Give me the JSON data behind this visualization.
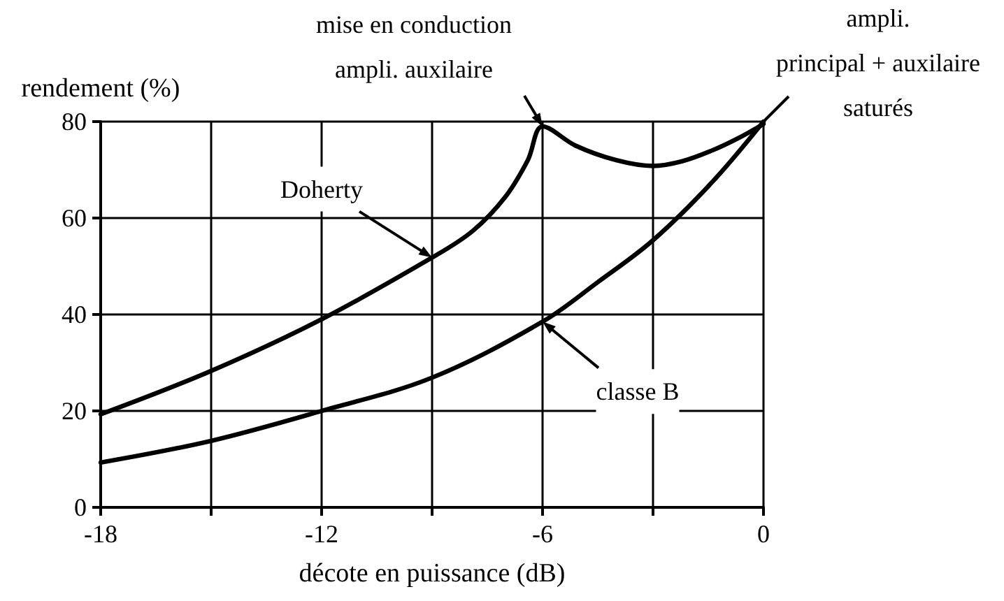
{
  "chart_data": {
    "type": "line",
    "xlabel": "décote en puissance (dB)",
    "ylabel": "rendement (%)",
    "xlim": [
      -18,
      0
    ],
    "xticks": [
      -18,
      {
        "value": -15,
        "label": null
      },
      -12,
      {
        "value": -9,
        "label": null
      },
      -6,
      {
        "value": -3,
        "label": null
      },
      0
    ],
    "ylim": [
      0,
      80
    ],
    "yticks": [
      0,
      20,
      40,
      60,
      80
    ],
    "grid": true,
    "marker": "none",
    "line_style": "solid",
    "series": [
      {
        "color": "#000000",
        "x": [
          -18,
          -15,
          -12,
          -9,
          -7.9,
          -7,
          -6.4,
          -6,
          -5.1,
          -4,
          -3,
          -2.2,
          -1.4,
          -0.7,
          0
        ],
        "values": [
          19.3,
          28.3,
          39,
          51.8,
          57.3,
          64.5,
          72,
          79,
          75,
          72,
          70.8,
          71.8,
          74,
          76.5,
          79.5
        ]
      },
      {
        "color": "#000000",
        "x": [
          -18,
          -15,
          -12,
          -9,
          -6,
          -4.5,
          -3,
          -1.4,
          0
        ],
        "values": [
          9.3,
          13.8,
          20,
          26.9,
          38.5,
          46.7,
          55.4,
          67.4,
          80
        ]
      }
    ],
    "annotations": [
      {
        "text": "Doherty",
        "x": -9,
        "y": 51.8
      },
      {
        "text": "classe B",
        "x": -6,
        "y": 38.5
      },
      {
        "text": "mise en conduction\nampli. auxilaire",
        "x": -6,
        "y": 79
      },
      {
        "text": "ampli.\nprincipal + auxilaire\nsaturés",
        "x": 0,
        "y": 80
      }
    ]
  }
}
